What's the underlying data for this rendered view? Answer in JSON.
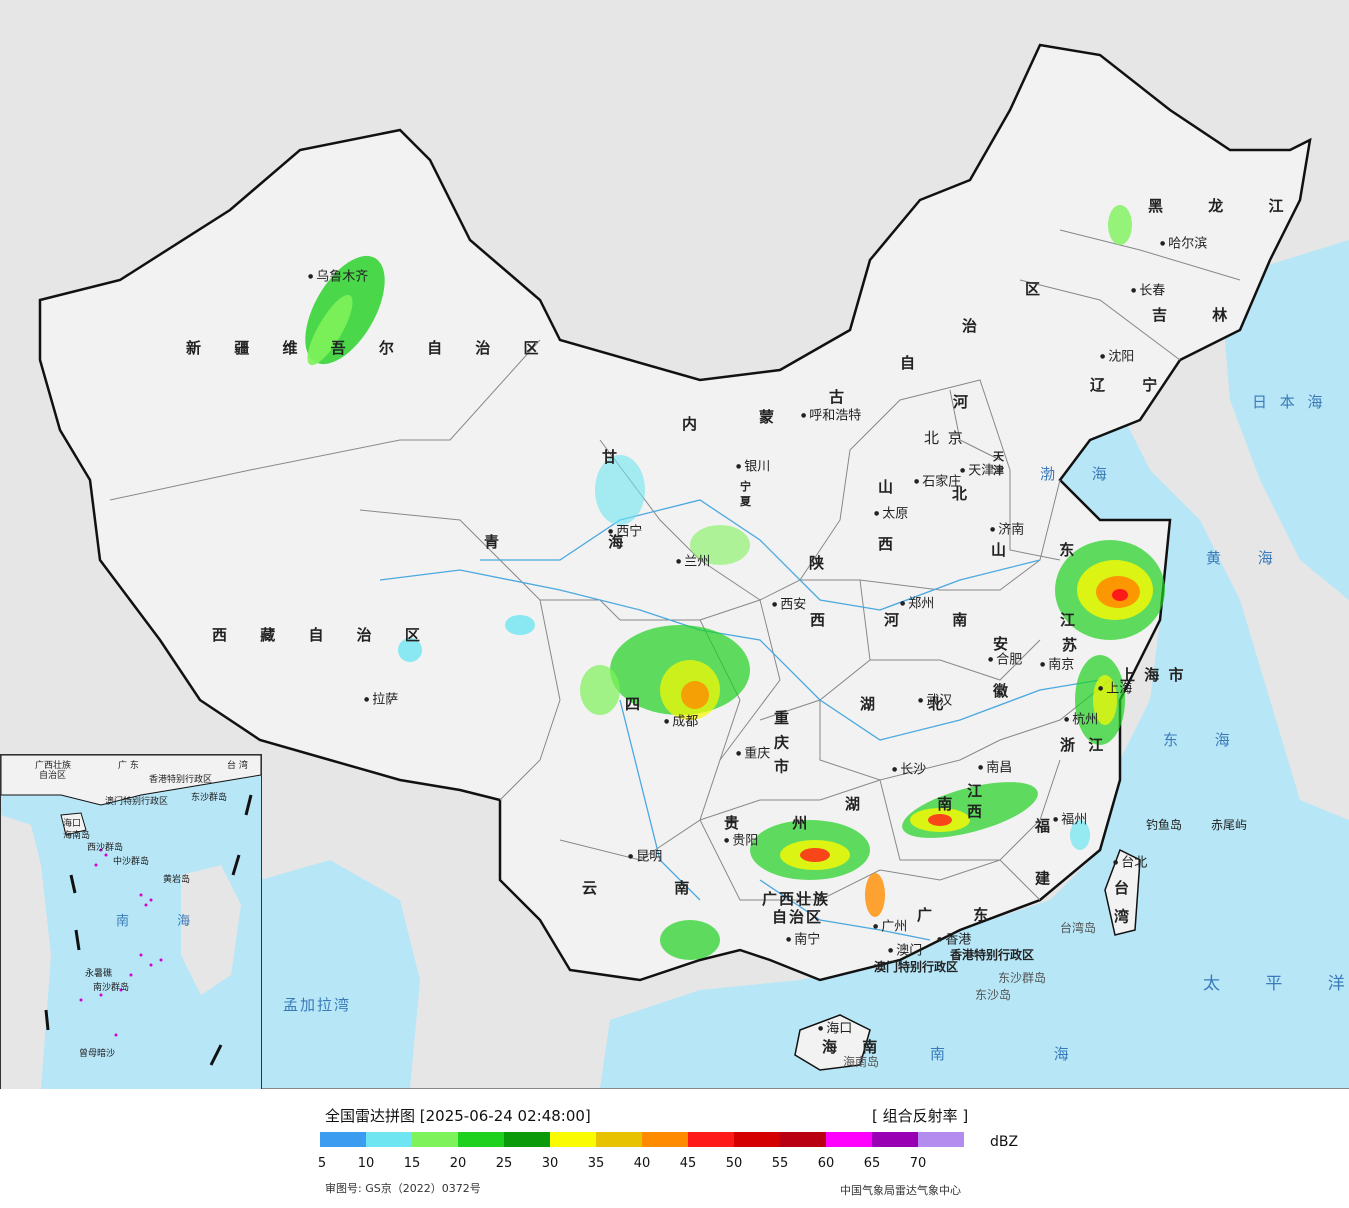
{
  "legend": {
    "title": "全国雷达拼图 [2025-06-24 02:48:00]",
    "product": "[ 组合反射率 ]",
    "unit": "dBZ",
    "ticks": [
      "5",
      "10",
      "15",
      "20",
      "25",
      "30",
      "35",
      "40",
      "45",
      "50",
      "55",
      "60",
      "65",
      "70"
    ],
    "colors": [
      "#3c9df0",
      "#6ee5f0",
      "#7ef25a",
      "#1fd11f",
      "#0a9a0a",
      "#fafa00",
      "#e6c200",
      "#ff8c00",
      "#ff1a1a",
      "#d40000",
      "#b80012",
      "#ff00ff",
      "#9900b4",
      "#b48cf0"
    ],
    "approval": "审图号: GS京（2022）0372号",
    "source": "中国气象局雷达气象中心"
  },
  "map": {
    "colors": {
      "ocean": "#b7e6f7",
      "land": "#f2f2f2",
      "neighbor": "#e6e6e6",
      "border": "#111111",
      "river": "#4aa8e0"
    },
    "provinces": [
      "新 疆 维 吾 尔 自 治 区",
      "西 藏 自 治 区",
      "青 海",
      "甘",
      "四",
      "云 南",
      "贵 州",
      "广西壮族",
      "自治区",
      "广 东",
      "海 南",
      "湖 南",
      "江 西",
      "福 建",
      "台 湾",
      "浙 江",
      "江",
      "苏",
      "安",
      "徽",
      "湖 北",
      "河 南",
      "山 东",
      "山",
      "西",
      "陕",
      "西",
      "宁",
      "夏",
      "内",
      "蒙",
      "古",
      "自",
      "治",
      "区",
      "河",
      "北",
      "辽 宁",
      "吉 林",
      "黑 龙 江",
      "重 庆 市",
      "上 海 市",
      "北 京",
      "天",
      "津"
    ],
    "cities": [
      "乌鲁木齐",
      "拉萨",
      "西宁",
      "兰州",
      "银川",
      "成都",
      "重庆",
      "贵阳",
      "昆明",
      "南宁",
      "广州",
      "澳门",
      "香港",
      "海口",
      "长沙",
      "南昌",
      "福州",
      "台北",
      "杭州",
      "上海",
      "南京",
      "合肥",
      "武汉",
      "郑州",
      "西安",
      "太原",
      "石家庄",
      "济南",
      "天津",
      "呼和浩特",
      "沈阳",
      "长春",
      "哈尔滨"
    ],
    "seas": [
      "渤 海",
      "黄 海",
      "东 海",
      "南 海",
      "太 平 洋",
      "日 本 海",
      "孟加拉湾"
    ],
    "islands": [
      "钓鱼岛",
      "赤尾屿",
      "东沙群岛",
      "东沙岛",
      "台湾岛",
      "海南岛"
    ],
    "specials": [
      "香港特别行政区",
      "澳门特别行政区"
    ],
    "inset": [
      "广西壮族",
      "自治区",
      "广 东",
      "澳门特别行政区",
      "香港特别行政区",
      "东沙群岛",
      "海口",
      "海南岛",
      "西沙群岛",
      "中沙群岛",
      "黄岩岛",
      "南 海",
      "南沙群岛",
      "永暑礁",
      "曾母暗沙",
      "台 湾"
    ]
  }
}
